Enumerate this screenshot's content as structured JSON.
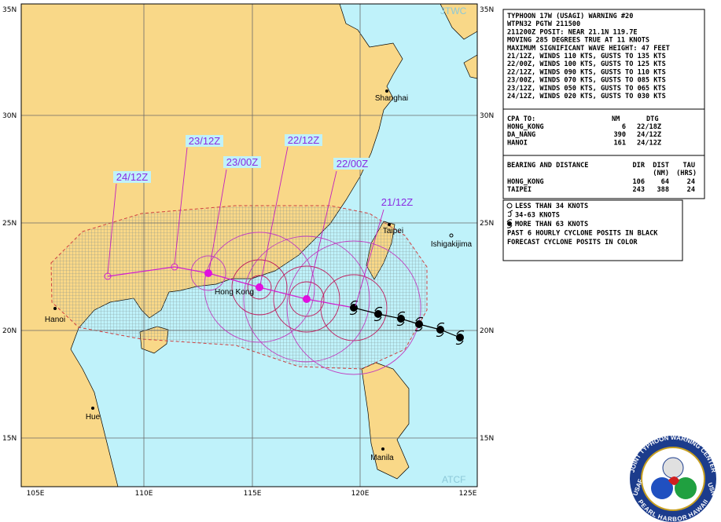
{
  "map": {
    "lat_labels": [
      "35N",
      "30N",
      "25N",
      "20N",
      "15N"
    ],
    "lon_labels": [
      "105E",
      "110E",
      "115E",
      "120E",
      "125E"
    ],
    "watermarks": [
      "JTWC",
      "ATCF"
    ],
    "places": [
      "Shanghai",
      "Taipei",
      "Ishigakijima",
      "Hong Kong",
      "Hanoi",
      "Hue",
      "Manila"
    ],
    "forecast_labels": [
      "21/12Z",
      "22/00Z",
      "22/12Z",
      "23/00Z",
      "23/12Z",
      "24/12Z"
    ]
  },
  "warning": {
    "lines": [
      "TYPHOON 17W (USAGI) WARNING #20",
      "WTPN32 PGTW 211500",
      "211200Z POSIT: NEAR 21.1N 119.7E",
      "MOVING 285 DEGREES TRUE AT 11 KNOTS",
      "MAXIMUM SIGNIFICANT WAVE HEIGHT: 47 FEET",
      "21/12Z, WINDS 110 KTS, GUSTS TO 135 KTS",
      "22/00Z, WINDS 100 KTS, GUSTS TO 125 KTS",
      "22/12Z, WINDS 090 KTS, GUSTS TO 110 KTS",
      "23/00Z, WINDS 070 KTS, GUSTS TO 085 KTS",
      "23/12Z, WINDS 050 KTS, GUSTS TO 065 KTS",
      "24/12Z, WINDS 020 KTS, GUSTS TO 030 KTS"
    ]
  },
  "cpa": {
    "header": [
      "CPA TO:",
      "NM",
      "DTG"
    ],
    "rows": [
      [
        "HONG_KONG",
        "6",
        "22/18Z"
      ],
      [
        "DA_NANG",
        "390",
        "24/12Z"
      ],
      [
        "HANOI",
        "161",
        "24/12Z"
      ]
    ]
  },
  "bearing": {
    "header": [
      "BEARING AND DISTANCE",
      "DIR",
      "DIST",
      "TAU"
    ],
    "subheader": [
      "(NM)",
      "(HRS)"
    ],
    "rows": [
      [
        "HONG_KONG",
        "106",
        "64",
        "24"
      ],
      [
        "TAIPEI",
        "243",
        "388",
        "24"
      ]
    ]
  },
  "legend": {
    "lines": [
      "LESS THAN 34 KNOTS",
      "34-63 KNOTS",
      "MORE THAN 63 KNOTS",
      "PAST 6 HOURLY CYCLONE POSITS IN BLACK",
      "FORECAST CYCLONE POSITS IN COLOR"
    ]
  },
  "logo": {
    "top": "JOINT TYPHOON WARNING CENTER",
    "bottom": "PEARL HARBOR HAWAII",
    "left": "USAF",
    "right": "USN"
  }
}
